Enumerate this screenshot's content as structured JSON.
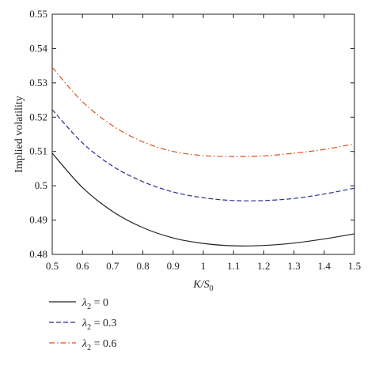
{
  "chart_data": {
    "type": "line",
    "xlabel_main": "K/S",
    "xlabel_sub": "0",
    "ylabel": "Implied volatility",
    "xlim": [
      0.5,
      1.5
    ],
    "ylim": [
      0.48,
      0.55
    ],
    "xticks": [
      "0.5",
      "0.6",
      "0.7",
      "0.8",
      "0.9",
      "1",
      "1.1",
      "1.2",
      "1.3",
      "1.4",
      "1.5"
    ],
    "yticks": [
      "0.48",
      "0.49",
      "0.5",
      "0.51",
      "0.52",
      "0.53",
      "0.54",
      "0.55"
    ],
    "grid": false,
    "legend_position": "bottom-left-below-plot",
    "series": [
      {
        "legend_symbol": "λ",
        "legend_sub": "2",
        "legend_value": " = 0",
        "color": "#222222",
        "dash": "solid",
        "x": [
          0.5,
          0.6,
          0.7,
          0.8,
          0.9,
          1.0,
          1.1,
          1.2,
          1.3,
          1.4,
          1.5
        ],
        "y": [
          0.5095,
          0.4995,
          0.4925,
          0.4878,
          0.4848,
          0.4832,
          0.4825,
          0.4826,
          0.4833,
          0.4845,
          0.486
        ]
      },
      {
        "legend_symbol": "λ",
        "legend_sub": "2",
        "legend_value": " = 0.3",
        "color": "#2b2f8f",
        "dash": "dashed",
        "x": [
          0.5,
          0.6,
          0.7,
          0.8,
          0.9,
          1.0,
          1.1,
          1.2,
          1.3,
          1.4,
          1.5
        ],
        "y": [
          0.5222,
          0.5125,
          0.5057,
          0.5012,
          0.4982,
          0.4965,
          0.4957,
          0.4957,
          0.4963,
          0.4976,
          0.4993
        ]
      },
      {
        "legend_symbol": "λ",
        "legend_sub": "2",
        "legend_value": " = 0.6",
        "color": "#d9541e",
        "dash": "dashdot",
        "x": [
          0.5,
          0.6,
          0.7,
          0.8,
          0.9,
          1.0,
          1.1,
          1.2,
          1.3,
          1.4,
          1.5
        ],
        "y": [
          0.5345,
          0.5245,
          0.5175,
          0.5128,
          0.51,
          0.5088,
          0.5085,
          0.5087,
          0.5095,
          0.5106,
          0.5122
        ]
      }
    ]
  }
}
